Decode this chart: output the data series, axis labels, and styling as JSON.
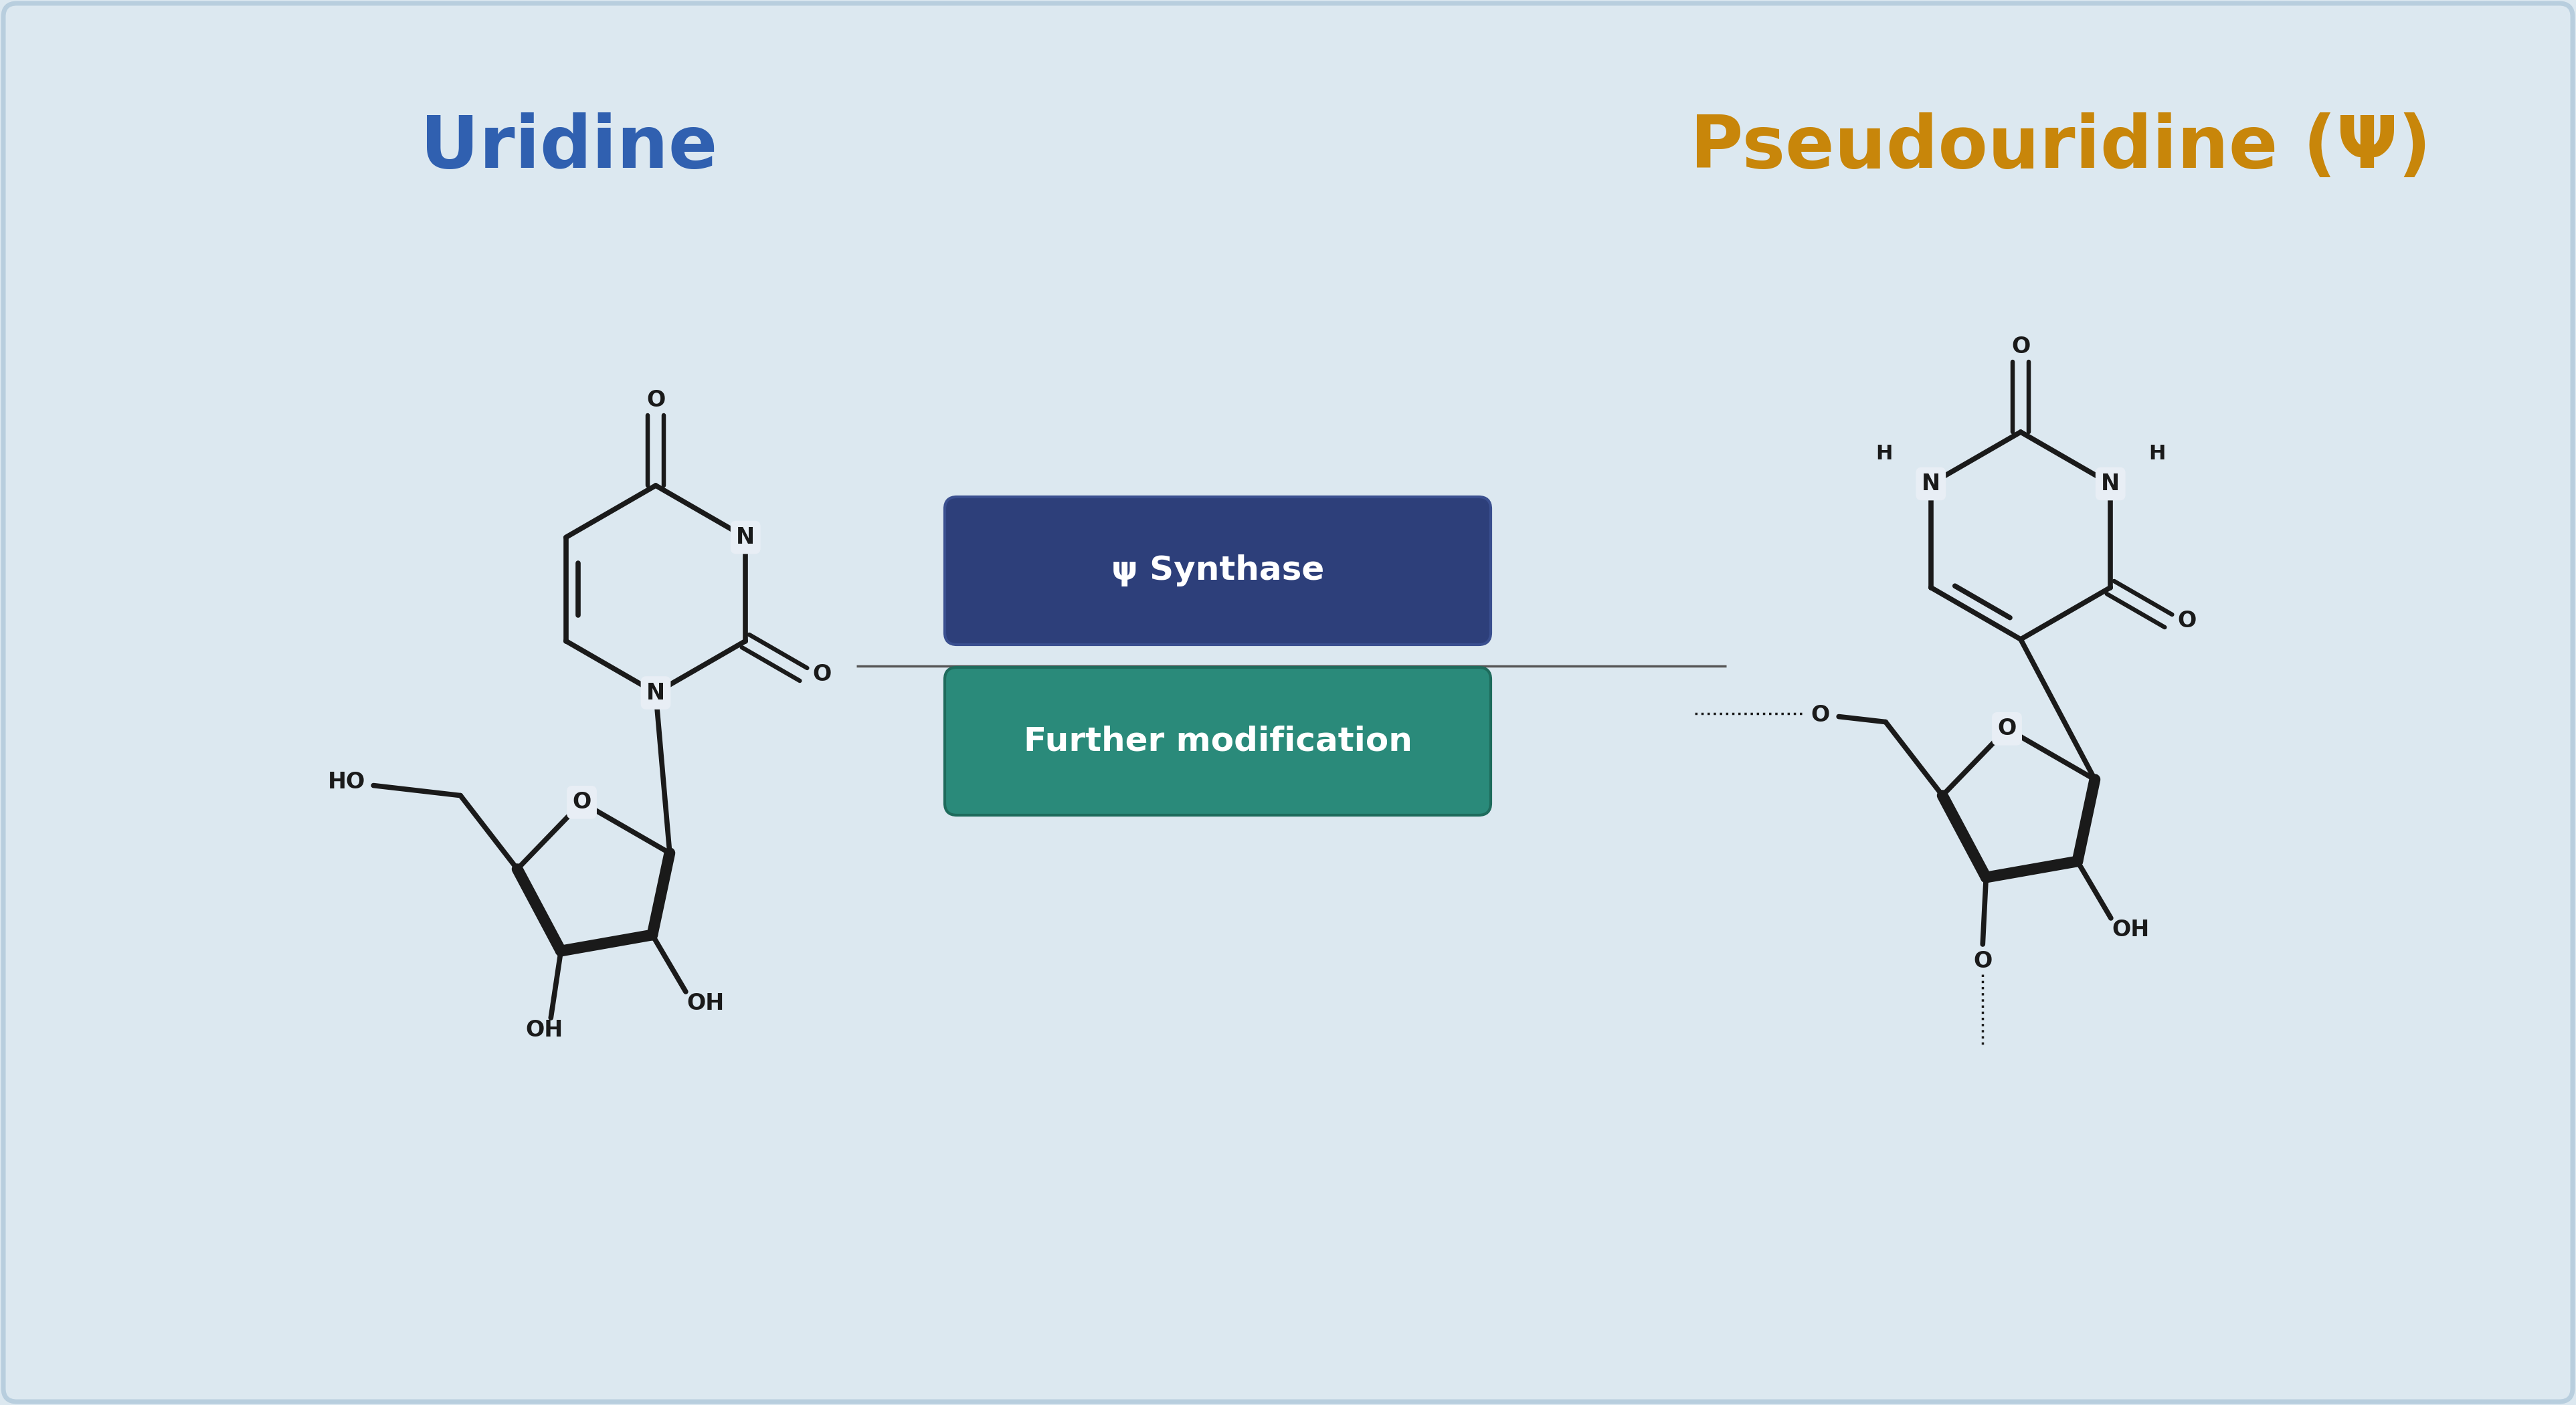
{
  "bg_color": "#dce8f0",
  "border_color": "#b8cede",
  "title_uridine": "Uridine",
  "title_uridine_color": "#3060b0",
  "title_pseudouridine": "Pseudouridine (Ψ)",
  "title_pseudouridine_color": "#c8860a",
  "bond_color": "#1a1a1a",
  "bond_lw": 5.5,
  "atom_bg": "#e8eef5",
  "label_color": "#1a1a1a",
  "box1_color": "#2d3f7a",
  "box1_border": "#3a4f8f",
  "box2_color": "#2a8a7a",
  "box2_border": "#1e6b5c",
  "box_text_color": "#ffffff",
  "box1_text": "ψ Synthase",
  "box2_text": "Further modification",
  "arrow_color": "#555555",
  "arrow_lw": 2.5
}
